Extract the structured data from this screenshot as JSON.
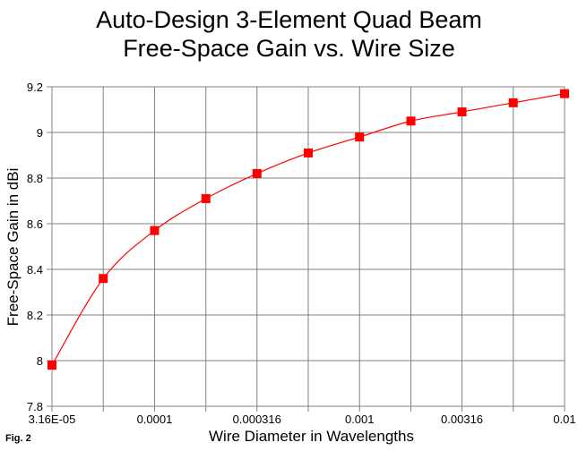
{
  "chart_data": {
    "type": "line",
    "title": [
      "Auto-Design 3-Element Quad Beam",
      "Free-Space Gain vs. Wire Size"
    ],
    "xlabel": "Wire Diameter in Wavelengths",
    "ylabel": "Free-Space Gain in dBi",
    "x_scale": "log",
    "x_ticks": [
      "3.16E-05",
      "0.0001",
      "0.000316",
      "0.001",
      "0.00316",
      "0.01"
    ],
    "x": [
      3.16e-05,
      5.62e-05,
      0.0001,
      0.000178,
      0.000316,
      0.000562,
      0.001,
      0.00178,
      0.00316,
      0.00562,
      0.01
    ],
    "ylim": [
      7.8,
      9.2
    ],
    "y_ticks": [
      "7.8",
      "8",
      "8.2",
      "8.4",
      "8.6",
      "8.8",
      "9",
      "9.2"
    ],
    "grid": true,
    "series": [
      {
        "values": [
          7.98,
          8.36,
          8.57,
          8.71,
          8.82,
          8.91,
          8.98,
          9.05,
          9.09,
          9.13,
          9.17
        ],
        "color": "#ff0000",
        "marker": "square"
      }
    ]
  },
  "figure_note": "Fig. 2"
}
